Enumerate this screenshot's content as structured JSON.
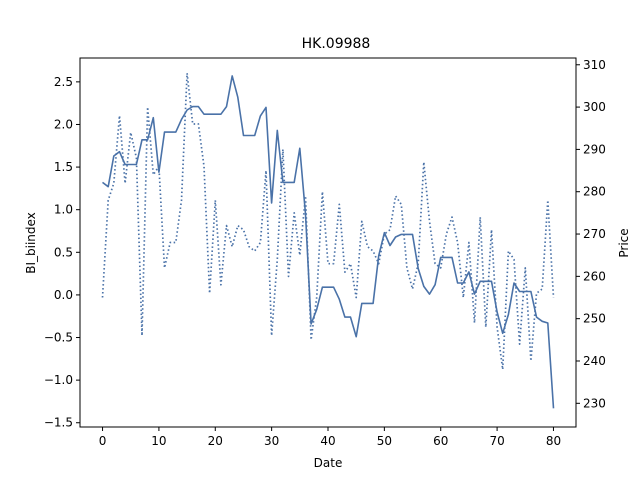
{
  "chart_data": {
    "type": "line",
    "title": "HK.09988",
    "xlabel": "Date",
    "ylabel_left": "BI_biindex",
    "ylabel_right": "Price",
    "xlim": [
      -4,
      84
    ],
    "ylim_left": [
      -1.55,
      2.78
    ],
    "ylim_right": [
      224.4,
      311.6
    ],
    "x_ticks": [
      0,
      10,
      20,
      30,
      40,
      50,
      60,
      70,
      80
    ],
    "y_ticks_left": [
      -1.5,
      -1.0,
      -0.5,
      0.0,
      0.5,
      1.0,
      1.5,
      2.0,
      2.5
    ],
    "y_ticks_left_labels": [
      "−1.5",
      "−1.0",
      "−0.5",
      "0.0",
      "0.5",
      "1.0",
      "1.5",
      "2.0",
      "2.5"
    ],
    "y_ticks_right": [
      230,
      240,
      250,
      260,
      270,
      280,
      290,
      300,
      310
    ],
    "grid": false,
    "legend": "none",
    "colors": {
      "line": "#4a72a8",
      "axis": "#000000"
    },
    "series": [
      {
        "axis": "left",
        "style": "solid",
        "values": [
          1.32,
          1.27,
          1.63,
          1.68,
          1.53,
          1.53,
          1.53,
          1.82,
          1.82,
          2.08,
          1.44,
          1.91,
          1.91,
          1.91,
          2.06,
          2.17,
          2.21,
          2.21,
          2.12,
          2.12,
          2.12,
          2.12,
          2.21,
          2.57,
          2.32,
          1.87,
          1.87,
          1.87,
          2.1,
          2.2,
          1.08,
          1.93,
          1.32,
          1.32,
          1.32,
          1.72,
          0.95,
          -0.34,
          -0.17,
          0.09,
          0.09,
          0.09,
          -0.05,
          -0.26,
          -0.26,
          -0.49,
          -0.1,
          -0.1,
          -0.1,
          0.46,
          0.73,
          0.58,
          0.68,
          0.71,
          0.71,
          0.71,
          0.31,
          0.1,
          0.01,
          0.12,
          0.44,
          0.44,
          0.44,
          0.14,
          0.14,
          0.27,
          0.01,
          0.16,
          0.16,
          0.16,
          -0.2,
          -0.45,
          -0.23,
          0.14,
          0.04,
          0.04,
          0.04,
          -0.26,
          -0.31,
          -0.33,
          -1.33
        ]
      },
      {
        "axis": "right",
        "style": "dotted",
        "values": [
          255,
          278,
          282,
          298,
          282,
          294,
          288,
          246,
          300,
          284,
          286,
          262,
          268,
          268,
          278,
          308,
          296,
          296,
          286,
          256,
          278,
          258,
          272,
          267,
          272,
          271,
          267,
          266,
          268,
          285,
          246,
          264,
          290,
          260,
          275,
          265,
          279,
          245,
          255,
          280,
          263,
          263,
          277,
          261,
          263,
          255,
          273,
          267,
          266,
          263,
          270,
          271,
          279,
          277,
          262,
          257,
          263,
          287,
          273,
          263,
          262,
          270,
          274,
          268,
          255,
          268,
          249,
          274,
          248,
          271,
          248,
          238,
          266,
          264,
          244,
          262,
          240,
          256,
          257,
          278,
          255
        ]
      }
    ]
  }
}
